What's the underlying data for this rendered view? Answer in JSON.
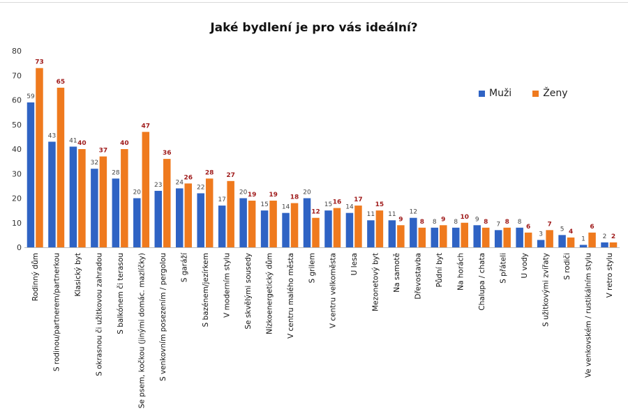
{
  "chart_data": {
    "type": "bar",
    "title": "Jaké bydlení je pro vás ideální?",
    "xlabel": "",
    "ylabel": "",
    "ylim": [
      0,
      80
    ],
    "yticks": [
      0,
      10,
      20,
      30,
      40,
      50,
      60,
      70,
      80
    ],
    "grid": false,
    "legend_position": "top-right",
    "categories": [
      "Rodinný dům",
      "S rodinou/partnerem/partnerkou",
      "Klasický byt",
      "S okrasnou či užitkovou zahradou",
      "S balkónem či terasou",
      "Se psem, kočkou (jinými domác. mazlíčky)",
      "S venkovním posezením / pergolou",
      "S garáží",
      "S bazénem/jezírkem",
      "V moderním stylu",
      "Se skvělými sousedy",
      "Nízkoenergetický dům",
      "V centru malého města",
      "S grilem",
      "V centru velkoměsta",
      "U lesa",
      "Mezonetový byt",
      "Na samotě",
      "Dřevostavba",
      "Půdní byt",
      "Na horách",
      "Chalupa / chata",
      "S přáteli",
      "U vody",
      "S užitkovými zvířaty",
      "S rodiči",
      "Ve venkovském / rustikálním stylu",
      "V retro stylu"
    ],
    "series": [
      {
        "name": "Muži",
        "color": "#2f63c4",
        "label_color": "#444444",
        "values": [
          59,
          43,
          41,
          32,
          28,
          20,
          23,
          24,
          22,
          17,
          20,
          15,
          14,
          20,
          15,
          14,
          11,
          11,
          12,
          8,
          8,
          9,
          7,
          8,
          3,
          5,
          1,
          2
        ]
      },
      {
        "name": "Ženy",
        "color": "#ef7a1e",
        "label_color": "#a01c1c",
        "values": [
          73,
          65,
          40,
          37,
          40,
          47,
          36,
          26,
          28,
          27,
          19,
          19,
          18,
          12,
          16,
          17,
          15,
          9,
          8,
          9,
          10,
          8,
          8,
          6,
          7,
          4,
          6,
          2
        ]
      }
    ]
  }
}
